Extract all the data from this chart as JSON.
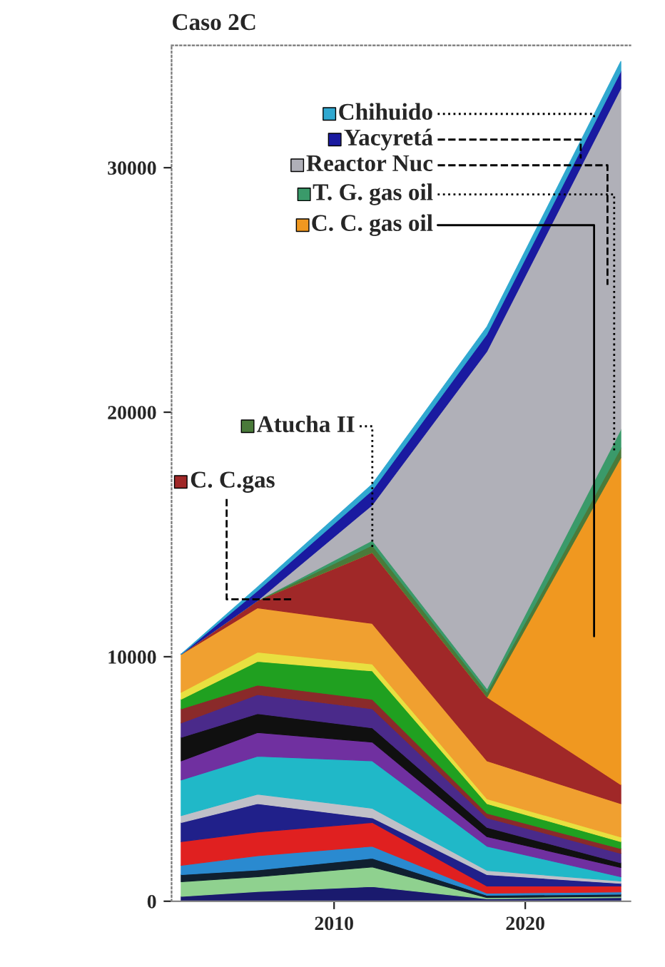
{
  "chart_data": {
    "type": "area",
    "stacked": true,
    "title": "Caso 2C",
    "x": [
      2002,
      2006,
      2012,
      2018,
      2025
    ],
    "xlim": [
      2001.5,
      2025.5
    ],
    "xticks": [
      2010,
      2020
    ],
    "ylim": [
      0,
      35000
    ],
    "yticks": [
      0,
      10000,
      20000,
      30000
    ],
    "grid": false,
    "legend": "top left",
    "series": [
      {
        "color": "#1a1a6e",
        "values": [
          200,
          400,
          600,
          100,
          150
        ]
      },
      {
        "color": "#8fd18f",
        "values": [
          600,
          600,
          800,
          50,
          50
        ]
      },
      {
        "color": "#102030",
        "values": [
          290,
          280,
          360,
          90,
          90
        ]
      },
      {
        "color": "#2a8ad0",
        "values": [
          380,
          580,
          490,
          90,
          90
        ]
      },
      {
        "color": "#e02020",
        "values": [
          970,
          970,
          970,
          290,
          240
        ]
      },
      {
        "color": "#20208a",
        "values": [
          780,
          1160,
          190,
          470,
          110
        ]
      },
      {
        "color": "#c0c0c8",
        "values": [
          280,
          390,
          390,
          170,
          100
        ]
      },
      {
        "color": "#20b8c8",
        "values": [
          1460,
          1550,
          1940,
          990,
          170
        ]
      },
      {
        "color": "#7030a0",
        "values": [
          780,
          970,
          770,
          390,
          380
        ]
      },
      {
        "color": "#101010",
        "values": [
          960,
          770,
          580,
          380,
          190
        ]
      },
      {
        "color": "#4a2a8a",
        "values": [
          590,
          780,
          780,
          390,
          390
        ]
      },
      {
        "color": "#8a2a2a",
        "values": [
          580,
          390,
          390,
          190,
          190
        ]
      },
      {
        "color": "#20a020",
        "values": [
          390,
          970,
          1160,
          390,
          290
        ]
      },
      {
        "color": "#e8e040",
        "values": [
          290,
          380,
          280,
          200,
          190
        ]
      },
      {
        "color": "#f0a030",
        "values": [
          1550,
          1810,
          1660,
          1550,
          1360
        ]
      },
      {
        "name": "C. C.gas",
        "color": "#a02828",
        "values": [
          0,
          300,
          2900,
          2610,
          780
        ]
      },
      {
        "name": "C. C. gas oil",
        "color": "#f09820",
        "values": [
          0,
          0,
          0,
          0,
          13370
        ]
      },
      {
        "name": "Atucha II",
        "color": "#4a7a3a",
        "values": [
          0,
          0,
          300,
          200,
          400
        ]
      },
      {
        "name": "T. G. gas oil",
        "color": "#3a9a6a",
        "values": [
          0,
          0,
          200,
          150,
          760
        ]
      },
      {
        "name": "Reactor Nuc",
        "color": "#b0b0b8",
        "values": [
          0,
          0,
          1450,
          13800,
          13950
        ]
      },
      {
        "name": "Yacyretá",
        "color": "#1a1aa0",
        "values": [
          0,
          400,
          600,
          700,
          700
        ]
      },
      {
        "name": "Chihuido",
        "color": "#30a8d0",
        "values": [
          0,
          150,
          250,
          300,
          400
        ]
      }
    ]
  }
}
